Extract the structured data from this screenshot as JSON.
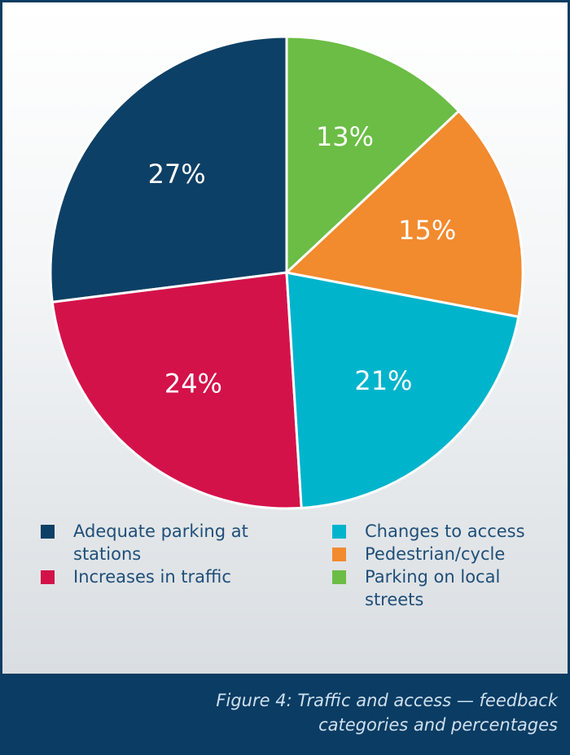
{
  "chart_data": {
    "type": "pie",
    "title": "Figure 4: Traffic and access — feedback categories and percentages",
    "categories": [
      "Adequate parking at stations",
      "Increases in traffic",
      "Changes to access",
      "Pedestrian/cycle",
      "Parking on local streets"
    ],
    "values": [
      27,
      24,
      21,
      15,
      13
    ],
    "value_labels": [
      "27%",
      "24%",
      "21%",
      "15%",
      "13%"
    ],
    "colors": [
      "#0d4066",
      "#d4124a",
      "#00b4cc",
      "#f28a2e",
      "#6bbd45"
    ]
  }
}
